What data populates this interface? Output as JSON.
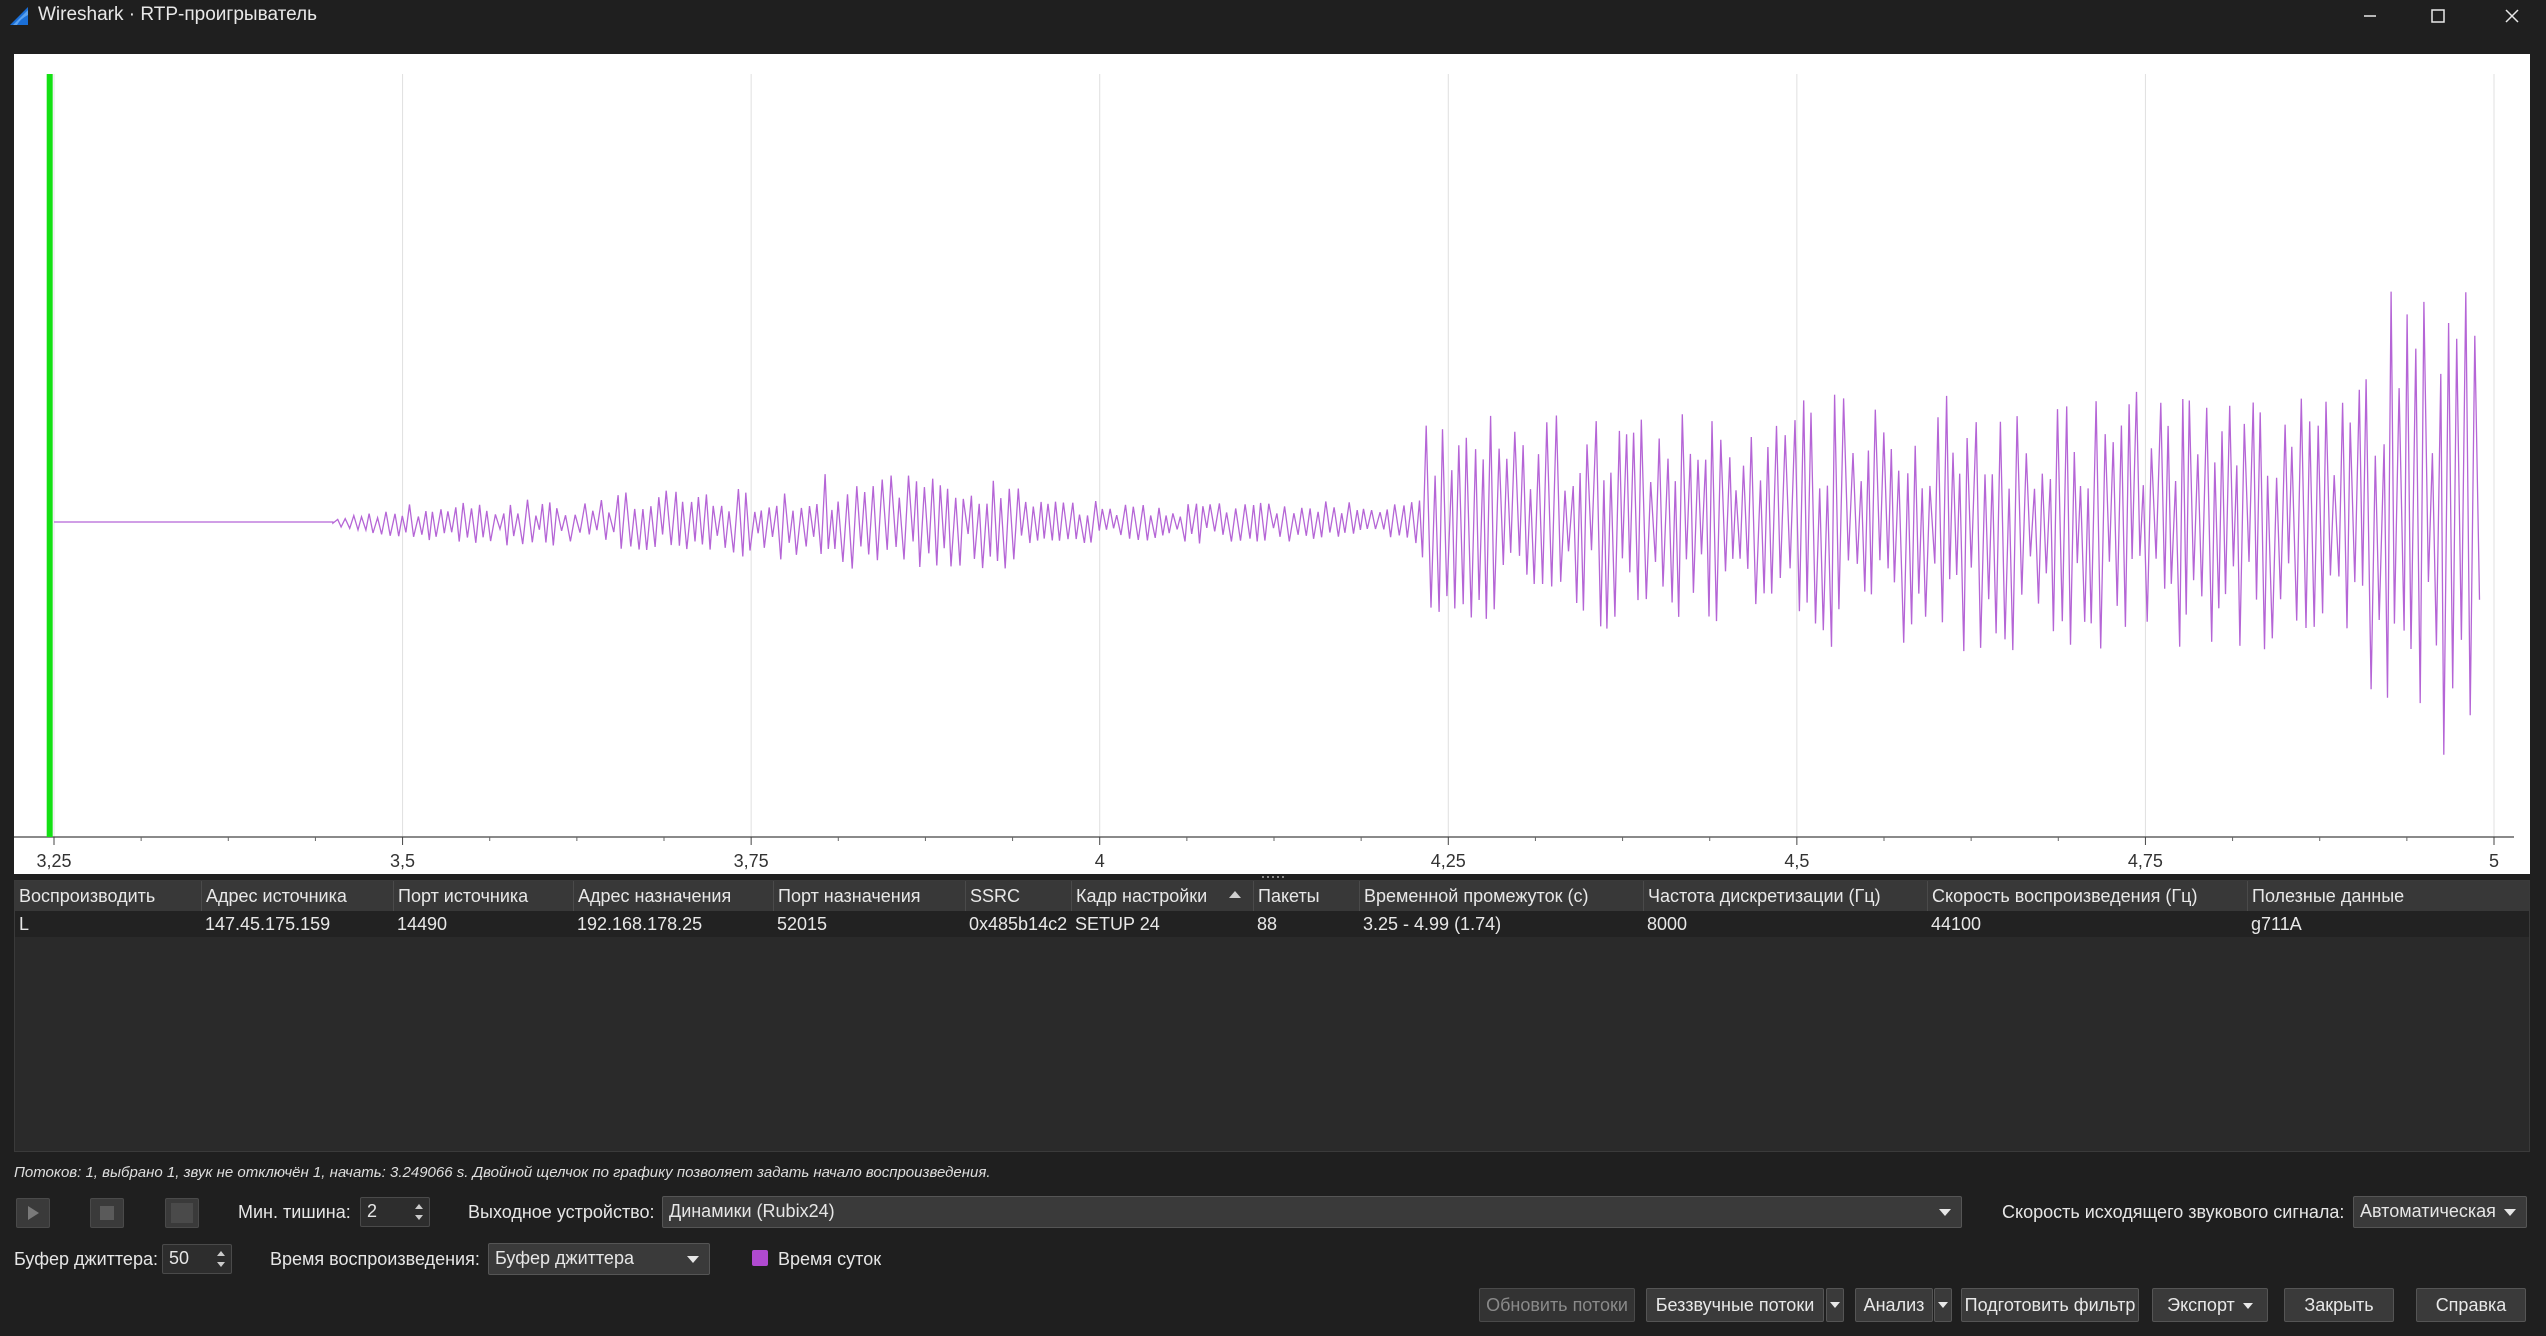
{
  "window": {
    "title": "Wireshark · RTP-проигрыватель",
    "minimize_icon": "minimize-icon",
    "maximize_icon": "maximize-icon",
    "close_icon": "close-icon"
  },
  "graph": {
    "playhead_color": "#14e014",
    "waveform_color": "#b565d6",
    "grid_color": "#e0e0e0",
    "x_ticks": [
      {
        "value": 3.25,
        "label": "3,25"
      },
      {
        "value": 3.5,
        "label": "3,5"
      },
      {
        "value": 3.75,
        "label": "3,75"
      },
      {
        "value": 4,
        "label": "4"
      },
      {
        "value": 4.25,
        "label": "4,25"
      },
      {
        "value": 4.5,
        "label": "4,5"
      },
      {
        "value": 4.75,
        "label": "4,75"
      },
      {
        "value": 5,
        "label": "5"
      }
    ],
    "x_range": [
      3.25,
      5.0
    ],
    "playhead_at": 3.249066
  },
  "table": {
    "columns": [
      "Воспроизводить",
      "Адрес источника",
      "Порт источника",
      "Адрес назначения",
      "Порт назначения",
      "SSRC",
      "Кадр настройки",
      "Пакеты",
      "Временной промежуток (с)",
      "Частота дискретизации (Гц)",
      "Скорость воспроизведения (Гц)",
      "Полезные данные"
    ],
    "rows": [
      [
        "L",
        "147.45.175.159",
        "14490",
        "192.168.178.25",
        "52015",
        "0x485b14c2",
        "SETUP 24",
        "88",
        "3.25 - 4.99 (1.74)",
        "8000",
        "44100",
        "g711A"
      ]
    ]
  },
  "hint": "Потоков: 1, выбрано 1, звук не отключён 1, начать: 3.249066 s. Двойной щелчок по графику позволяет задать начало воспроизведения.",
  "controls": {
    "play_icon": "play-icon",
    "stop_icon": "stop-icon",
    "pause_icon": "pause-icon",
    "min_silence_label": "Мин. тишина:",
    "min_silence_value": "2",
    "output_device_label": "Выходное устройство:",
    "output_device_value": "Динамики (Rubix24)",
    "output_rate_label": "Скорость исходящего звукового сигнала:",
    "output_rate_value": "Автоматическая",
    "jitter_label": "Буфер джиттера:",
    "jitter_value": "50",
    "playback_time_label": "Время воспроизведения:",
    "playback_time_value": "Буфер джиттера",
    "time_of_day_label": "Время суток",
    "time_of_day_color": "#b04ad0"
  },
  "buttons": {
    "refresh": "Обновить потоки",
    "silent": "Беззвучные потоки",
    "analyze": "Анализ",
    "prepare_filter": "Подготовить фильтр",
    "export": "Экспорт",
    "close": "Закрыть",
    "help": "Справка"
  }
}
